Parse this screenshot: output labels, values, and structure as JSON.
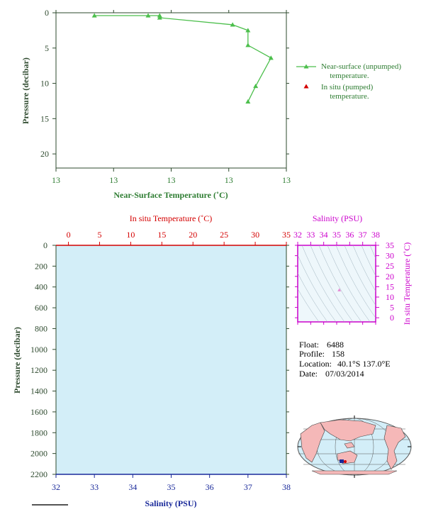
{
  "float_info": {
    "float_label": "Float:",
    "float_value": "6488",
    "profile_label": "Profile:",
    "profile_value": "158",
    "location_label": "Location:",
    "location_value": "40.1°S  137.0°E",
    "date_label": "Date:",
    "date_value": "07/03/2014"
  },
  "colors": {
    "near_surface": "#4cbf4c",
    "in_situ_temp": "#d40000",
    "salinity": "#cc00cc",
    "salinity_axis": "#1a2a9a",
    "pressure_axis": "#2e4a2e",
    "profile_bg": "#d3eef8",
    "map_land": "#f5b8b8",
    "map_ocean": "#d3eef8",
    "float_marker": "#1a2a9a"
  },
  "chart_data": [
    {
      "type": "line",
      "id": "near-surface-temperature",
      "xlabel": "Near-Surface Temperature (˚C)",
      "ylabel": "Pressure (decibar)",
      "x_tick_labels": [
        "13",
        "13",
        "13",
        "13",
        "13"
      ],
      "x_range": [
        12.9,
        13.5
      ],
      "ylim": [
        0,
        22
      ],
      "y_ticks": [
        0,
        5,
        10,
        15,
        20
      ],
      "y_inverted": true,
      "legend_position": "right",
      "legend": [
        {
          "label_line1": "Near-surface (unpumped)",
          "label_line2": "temperature.",
          "color": "#4cbf4c"
        },
        {
          "label_line1": "In situ (pumped)",
          "label_line2": "temperature.",
          "color": "#d40000"
        }
      ],
      "series": [
        {
          "name": "Near-surface (unpumped) temperature",
          "points": [
            {
              "t": 13.0,
              "p": 0.4
            },
            {
              "t": 13.14,
              "p": 0.4
            },
            {
              "t": 13.17,
              "p": 0.4
            },
            {
              "t": 13.17,
              "p": 0.7
            },
            {
              "t": 13.36,
              "p": 1.7
            },
            {
              "t": 13.4,
              "p": 2.5
            },
            {
              "t": 13.4,
              "p": 4.6
            },
            {
              "t": 13.46,
              "p": 6.4
            },
            {
              "t": 13.42,
              "p": 10.4
            },
            {
              "t": 13.4,
              "p": 12.6
            }
          ]
        }
      ]
    },
    {
      "type": "line",
      "id": "in-situ-profile",
      "top_axis_label": "In situ Temperature (˚C)",
      "top_axis_range": [
        -2,
        35
      ],
      "top_axis_ticks": [
        0,
        5,
        10,
        15,
        20,
        25,
        30,
        35
      ],
      "bottom_axis_label": "Salinity (PSU)",
      "bottom_axis_range": [
        32,
        38
      ],
      "bottom_axis_ticks": [
        32,
        33,
        34,
        35,
        36,
        37,
        38
      ],
      "ylabel": "Pressure (decibar)",
      "ylim": [
        0,
        2200
      ],
      "y_ticks": [
        0,
        200,
        400,
        600,
        800,
        1000,
        1200,
        1400,
        1600,
        1800,
        2000,
        2200
      ],
      "y_inverted": true,
      "series": []
    },
    {
      "type": "scatter",
      "id": "ts-diagram",
      "top_axis_label": "Salinity (PSU)",
      "x_range": [
        32,
        38
      ],
      "x_ticks": [
        32,
        33,
        34,
        35,
        36,
        37,
        38
      ],
      "ylabel": "In situ Temperature (˚C)",
      "ylim": [
        -2,
        35
      ],
      "y_ticks": [
        0,
        5,
        10,
        15,
        20,
        25,
        30,
        35
      ],
      "points": [
        {
          "s": 35.2,
          "t": 13.4
        }
      ]
    }
  ],
  "map": {
    "float_lat": -40.1,
    "float_lon": 137.0
  }
}
